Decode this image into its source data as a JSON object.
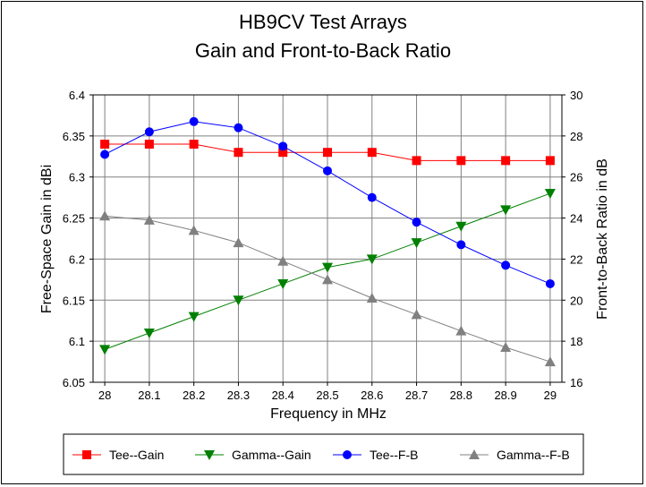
{
  "chart_data": {
    "type": "line",
    "title": "HB9CV Test Arrays",
    "subtitle": "Gain and Front-to-Back Ratio",
    "xlabel": "Frequency in MHz",
    "ylabel_left": "Free-Space Gain in dBi",
    "ylabel_right": "Front-to-Back Ratio in dB",
    "x": [
      28,
      28.1,
      28.2,
      28.3,
      28.4,
      28.5,
      28.6,
      28.7,
      28.8,
      28.9,
      29
    ],
    "x_tick_labels": [
      "28",
      "28.1",
      "28.2",
      "28.3",
      "28.4",
      "28.5",
      "28.6",
      "28.7",
      "28.8",
      "28.9",
      "29"
    ],
    "ylim_left": [
      6.05,
      6.4
    ],
    "y_left_tick_labels": [
      "6.05",
      "6.1",
      "6.15",
      "6.2",
      "6.25",
      "6.3",
      "6.35",
      "6.4"
    ],
    "ylim_right": [
      16,
      30
    ],
    "y_right_tick_labels": [
      "16",
      "18",
      "20",
      "22",
      "24",
      "26",
      "28",
      "30"
    ],
    "grid": true,
    "legend_position": "bottom",
    "series": [
      {
        "name": "Tee--Gain",
        "axis": "left",
        "color": "#ff0000",
        "marker": "square",
        "values": [
          6.34,
          6.34,
          6.34,
          6.33,
          6.33,
          6.33,
          6.33,
          6.32,
          6.32,
          6.32,
          6.32
        ]
      },
      {
        "name": "Gamma--Gain",
        "axis": "left",
        "color": "#008000",
        "marker": "triangle-down",
        "values": [
          6.09,
          6.11,
          6.13,
          6.15,
          6.17,
          6.19,
          6.2,
          6.22,
          6.24,
          6.26,
          6.28
        ]
      },
      {
        "name": "Tee--F-B",
        "axis": "right",
        "color": "#0000ff",
        "marker": "circle",
        "values": [
          27.1,
          28.2,
          28.7,
          28.4,
          27.5,
          26.3,
          25.0,
          23.8,
          22.7,
          21.7,
          20.8
        ]
      },
      {
        "name": "Gamma--F-B",
        "axis": "right",
        "color": "#808080",
        "marker": "triangle-up",
        "values": [
          24.1,
          23.9,
          23.4,
          22.8,
          21.9,
          21.0,
          20.1,
          19.3,
          18.5,
          17.7,
          17.0
        ]
      }
    ]
  }
}
